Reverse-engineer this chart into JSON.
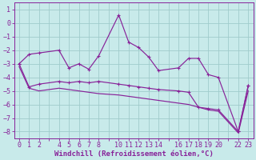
{
  "background_color": "#c8eaea",
  "grid_color": "#a0cccc",
  "line_color": "#882299",
  "xlabel": "Windchill (Refroidissement éolien,°C)",
  "xlabel_fontsize": 6.5,
  "tick_fontsize": 6.0,
  "xlim": [
    -0.5,
    23.5
  ],
  "ylim": [
    -8.5,
    1.5
  ],
  "xtick_positions": [
    0,
    1,
    2,
    3,
    4,
    5,
    6,
    7,
    8,
    9,
    10,
    11,
    12,
    13,
    14,
    15,
    16,
    17,
    18,
    19,
    20,
    21,
    22,
    23
  ],
  "xtick_labels": [
    "0",
    "1",
    "2",
    "",
    "4",
    "5",
    "6",
    "7",
    "8",
    "",
    "10",
    "11",
    "12",
    "13",
    "14",
    "",
    "16",
    "17",
    "18",
    "19",
    "20",
    "",
    "22",
    "23"
  ],
  "yticks": [
    1,
    0,
    -1,
    -2,
    -3,
    -4,
    -5,
    -6,
    -7,
    -8
  ],
  "series1_x": [
    0,
    1,
    2,
    4,
    5,
    6,
    7,
    8,
    10,
    11,
    12,
    13,
    14,
    16,
    17,
    18,
    19,
    20,
    22,
    23
  ],
  "series1_y": [
    -3.0,
    -2.3,
    -2.2,
    -2.0,
    -3.3,
    -3.0,
    -3.4,
    -2.4,
    0.6,
    -1.4,
    -1.8,
    -2.5,
    -3.5,
    -3.3,
    -2.6,
    -2.6,
    -3.8,
    -4.0,
    -8.0,
    -4.6
  ],
  "series2_x": [
    0,
    1,
    2,
    4,
    5,
    6,
    7,
    8,
    10,
    11,
    12,
    13,
    14,
    16,
    17,
    18,
    19,
    20,
    22,
    23
  ],
  "series2_y": [
    -3.0,
    -4.7,
    -4.5,
    -4.3,
    -4.4,
    -4.3,
    -4.4,
    -4.3,
    -4.5,
    -4.6,
    -4.7,
    -4.8,
    -4.9,
    -5.0,
    -5.1,
    -6.2,
    -6.3,
    -6.4,
    -8.0,
    -4.6
  ],
  "series3_x": [
    0,
    1,
    2,
    4,
    5,
    6,
    7,
    8,
    10,
    11,
    12,
    13,
    14,
    16,
    17,
    18,
    19,
    20,
    22,
    23
  ],
  "series3_y": [
    -3.2,
    -4.8,
    -5.0,
    -4.8,
    -4.9,
    -5.0,
    -5.1,
    -5.2,
    -5.3,
    -5.4,
    -5.5,
    -5.6,
    -5.7,
    -5.9,
    -6.0,
    -6.2,
    -6.4,
    -6.5,
    -8.1,
    -5.0
  ]
}
